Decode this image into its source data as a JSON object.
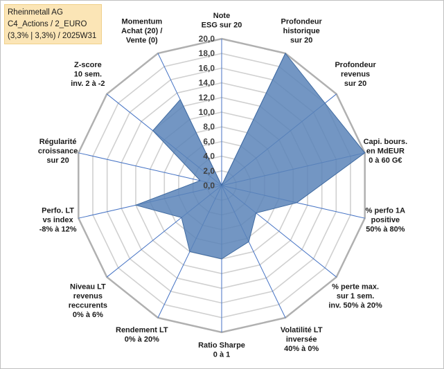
{
  "header": {
    "line1": "Rheinmetall AG",
    "line2": "C4_Actions / 2_EURO",
    "line3": "(3,3% | 3,3%) / 2025W31"
  },
  "chart_data": {
    "type": "radar",
    "title": "",
    "rmax": 20,
    "tick_values": [
      0,
      2,
      4,
      6,
      8,
      10,
      12,
      14,
      16,
      18,
      20
    ],
    "tick_labels": [
      "0,0",
      "2,0",
      "4,0",
      "6,0",
      "8,0",
      "10,0",
      "12,0",
      "14,0",
      "16,0",
      "18,0",
      "20,0"
    ],
    "axes": [
      [
        "Note",
        "ESG sur 20"
      ],
      [
        "Profondeur",
        "historique",
        "sur 20"
      ],
      [
        "Profondeur",
        "revenus",
        "sur 20"
      ],
      [
        "Capi. bours.",
        "en MdEUR",
        "0 à 60 G€"
      ],
      [
        "% perfo 1A",
        "positive",
        "50% à 80%"
      ],
      [
        "% perte max.",
        "sur 1 sem.",
        "inv. 50% à 20%"
      ],
      [
        "Volatilité LT",
        "inversée",
        "40% à 0%"
      ],
      [
        "Ratio Sharpe",
        "0 à 1"
      ],
      [
        "Rendement LT",
        "0% à 20%"
      ],
      [
        "Niveau LT",
        "revenus",
        "reccurents",
        "0% à 6%"
      ],
      [
        "Perfo. LT",
        "vs index",
        "-8% à 12%"
      ],
      [
        "Régularité",
        "croissance",
        "sur 20"
      ],
      [
        "Z-score",
        "10 sem.",
        "inv. 2 à -2"
      ],
      [
        "Momentum",
        "Achat (20) /",
        "Vente (0)"
      ]
    ],
    "values": [
      0,
      20,
      18,
      20,
      10.5,
      6,
      8.5,
      10,
      10,
      7,
      12,
      3,
      12,
      13
    ],
    "fill_color": "#5b84b8",
    "fill_opacity": 0.85,
    "grid_color": "#d0d0d0",
    "spoke_color": "#4472c4"
  }
}
